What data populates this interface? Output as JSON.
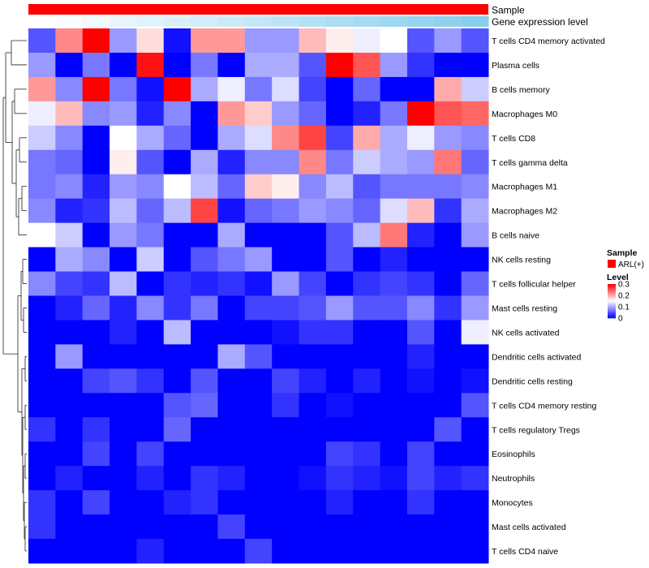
{
  "chart_data": {
    "type": "heatmap",
    "title": "",
    "annotations": [
      {
        "name": "Sample",
        "kind": "categorical",
        "colors": [
          "#ff0000"
        ]
      },
      {
        "name": "Gene expression level",
        "kind": "gradient",
        "colors": [
          "#ffffff",
          "#87ceeb"
        ]
      }
    ],
    "rows": [
      "T cells CD4 memory activated",
      "Plasma cells",
      "B cells memory",
      "Macrophages M0",
      "T cells CD8",
      "T cells gamma delta",
      "Macrophages M1",
      "Macrophages M2",
      "B cells naive",
      "NK cells resting",
      "T cells follicular helper",
      "Mast cells resting",
      "NK cells activated",
      "Dendritic cells activated",
      "Dendritic cells resting",
      "T cells CD4 memory resting",
      "T cells regulatory  Tregs",
      "Eosinophils",
      "Neutrophils",
      "Monocytes",
      "Mast cells activated",
      "T cells CD4 naive"
    ],
    "n_columns": 17,
    "values": [
      [
        0.05,
        0.22,
        0.3,
        0.09,
        0.17,
        0.01,
        0.21,
        0.21,
        0.09,
        0.09,
        0.19,
        0.16,
        0.14,
        0.15,
        0.05,
        0.09,
        0.05
      ],
      [
        0.09,
        0.0,
        0.07,
        0.0,
        0.29,
        0.0,
        0.07,
        0.0,
        0.1,
        0.1,
        0.05,
        0.3,
        0.25,
        0.09,
        0.03,
        0.0,
        0.0
      ],
      [
        0.21,
        0.08,
        0.3,
        0.07,
        0.01,
        0.3,
        0.1,
        0.14,
        0.07,
        0.13,
        0.04,
        0.0,
        0.06,
        0.0,
        0.0,
        0.2,
        0.12
      ],
      [
        0.14,
        0.19,
        0.08,
        0.09,
        0.02,
        0.08,
        0.0,
        0.21,
        0.18,
        0.09,
        0.06,
        0.0,
        0.02,
        0.07,
        0.3,
        0.25,
        0.24
      ],
      [
        0.12,
        0.08,
        0.0,
        0.15,
        0.1,
        0.06,
        0.0,
        0.1,
        0.13,
        0.22,
        0.26,
        0.04,
        0.2,
        0.1,
        0.14,
        0.09,
        0.08
      ],
      [
        0.07,
        0.06,
        0.0,
        0.16,
        0.05,
        0.0,
        0.1,
        0.02,
        0.08,
        0.08,
        0.22,
        0.07,
        0.12,
        0.1,
        0.09,
        0.23,
        0.06
      ],
      [
        0.07,
        0.08,
        0.02,
        0.09,
        0.08,
        0.15,
        0.11,
        0.06,
        0.18,
        0.16,
        0.08,
        0.11,
        0.05,
        0.07,
        0.07,
        0.07,
        0.08
      ],
      [
        0.08,
        0.02,
        0.03,
        0.11,
        0.06,
        0.11,
        0.26,
        0.01,
        0.06,
        0.07,
        0.09,
        0.08,
        0.06,
        0.13,
        0.19,
        0.03,
        0.1
      ],
      [
        0.15,
        0.12,
        0.0,
        0.09,
        0.07,
        0.0,
        0.0,
        0.1,
        0.0,
        0.0,
        0.0,
        0.05,
        0.11,
        0.23,
        0.02,
        0.0,
        0.09
      ],
      [
        0.0,
        0.1,
        0.08,
        0.0,
        0.12,
        0.0,
        0.05,
        0.07,
        0.09,
        0.0,
        0.0,
        0.05,
        0.0,
        0.02,
        0.0,
        0.0,
        0.0
      ],
      [
        0.08,
        0.04,
        0.03,
        0.11,
        0.0,
        0.03,
        0.02,
        0.03,
        0.01,
        0.09,
        0.04,
        0.0,
        0.03,
        0.04,
        0.03,
        0.0,
        0.06
      ],
      [
        0.0,
        0.02,
        0.06,
        0.02,
        0.08,
        0.03,
        0.07,
        0.0,
        0.04,
        0.04,
        0.05,
        0.09,
        0.05,
        0.05,
        0.08,
        0.03,
        0.09
      ],
      [
        0.0,
        0.0,
        0.0,
        0.02,
        0.0,
        0.11,
        0.0,
        0.0,
        0.0,
        0.01,
        0.03,
        0.03,
        0.0,
        0.0,
        0.05,
        0.0,
        0.14
      ],
      [
        0.0,
        0.09,
        0.0,
        0.0,
        0.0,
        0.0,
        0.0,
        0.1,
        0.05,
        0.0,
        0.0,
        0.0,
        0.0,
        0.0,
        0.02,
        0.0,
        0.0
      ],
      [
        0.0,
        0.0,
        0.04,
        0.05,
        0.03,
        0.0,
        0.05,
        0.0,
        0.0,
        0.04,
        0.02,
        0.0,
        0.02,
        0.0,
        0.01,
        0.0,
        0.01
      ],
      [
        0.0,
        0.0,
        0.0,
        0.0,
        0.0,
        0.05,
        0.06,
        0.0,
        0.0,
        0.03,
        0.0,
        0.01,
        0.0,
        0.0,
        0.0,
        0.0,
        0.05
      ],
      [
        0.03,
        0.0,
        0.03,
        0.0,
        0.0,
        0.06,
        0.0,
        0.0,
        0.0,
        0.0,
        0.0,
        0.0,
        0.0,
        0.0,
        0.0,
        0.05,
        0.0
      ],
      [
        0.0,
        0.0,
        0.04,
        0.0,
        0.04,
        0.0,
        0.0,
        0.0,
        0.0,
        0.0,
        0.0,
        0.04,
        0.03,
        0.0,
        0.04,
        0.0,
        0.0
      ],
      [
        0.0,
        0.02,
        0.0,
        0.0,
        0.02,
        0.0,
        0.03,
        0.02,
        0.0,
        0.0,
        0.01,
        0.03,
        0.02,
        0.01,
        0.04,
        0.02,
        0.03
      ],
      [
        0.03,
        0.0,
        0.04,
        0.0,
        0.0,
        0.02,
        0.03,
        0.0,
        0.0,
        0.0,
        0.0,
        0.02,
        0.0,
        0.0,
        0.03,
        0.0,
        0.0
      ],
      [
        0.03,
        0.0,
        0.0,
        0.0,
        0.0,
        0.0,
        0.0,
        0.04,
        0.0,
        0.0,
        0.0,
        0.0,
        0.0,
        0.0,
        0.0,
        0.0,
        0.0
      ],
      [
        0.0,
        0.0,
        0.0,
        0.0,
        0.02,
        0.0,
        0.0,
        0.0,
        0.04,
        0.0,
        0.0,
        0.0,
        0.0,
        0.0,
        0.0,
        0.0,
        0.0
      ]
    ],
    "color_scale": {
      "domain": [
        0,
        0.15,
        0.3
      ],
      "colors": [
        "#0000ff",
        "#ffffff",
        "#ff0000"
      ]
    },
    "legend": {
      "placement": "right",
      "sample": {
        "title": "Sample",
        "entries": [
          {
            "label": "ARL(+)",
            "color": "#ff0000"
          }
        ]
      },
      "level": {
        "title": "Level",
        "ticks": [
          "0.3",
          "0.2",
          "0.1",
          "0"
        ],
        "tick_values": [
          0.3,
          0.2,
          0.1,
          0
        ]
      }
    },
    "row_dendrogram": true
  }
}
